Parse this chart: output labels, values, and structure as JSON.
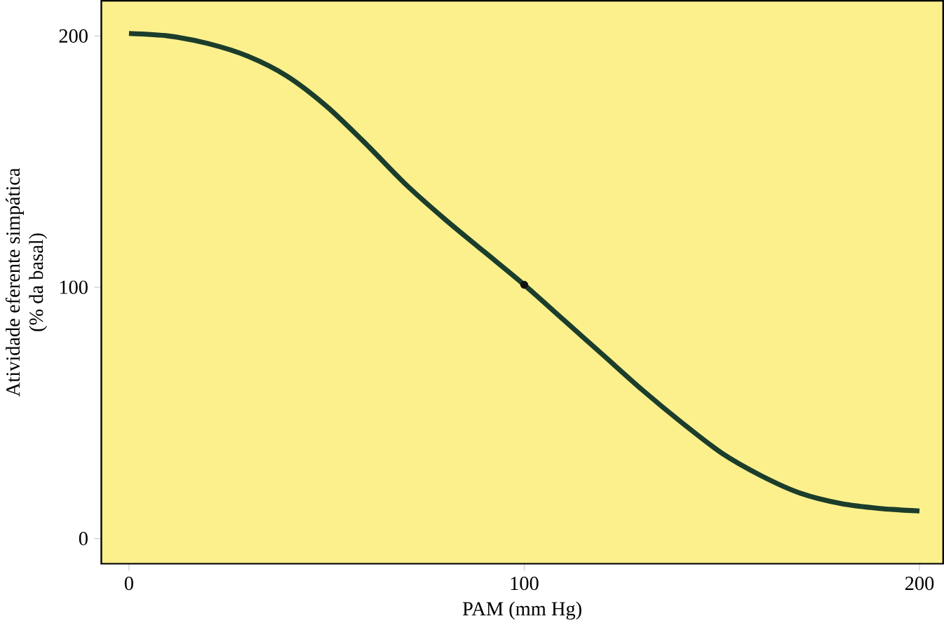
{
  "chart_data": {
    "type": "line",
    "xlabel": "PAM (mm Hg)",
    "ylabel": "Atividade eferente simpática\n(% da basal)",
    "xlim": [
      -7,
      206
    ],
    "ylim": [
      -10,
      214
    ],
    "xticks": [
      0,
      100,
      200
    ],
    "yticks": [
      0,
      100,
      200
    ],
    "grid": false,
    "series": [
      {
        "color": "#1b3d2c",
        "marker": "none",
        "line_style": "solid",
        "x": [
          0,
          10,
          20,
          30,
          40,
          50,
          60,
          70,
          80,
          90,
          100,
          110,
          120,
          130,
          140,
          150,
          160,
          170,
          180,
          190,
          200
        ],
        "values": [
          201,
          200,
          197,
          192,
          184,
          172,
          157,
          141,
          127,
          114,
          101,
          87,
          73,
          59,
          46,
          34,
          25,
          18,
          14,
          12,
          11
        ]
      },
      {
        "type": "scatter",
        "color": "#111111",
        "marker": "circle",
        "x": [
          100
        ],
        "values": [
          101
        ]
      }
    ]
  }
}
